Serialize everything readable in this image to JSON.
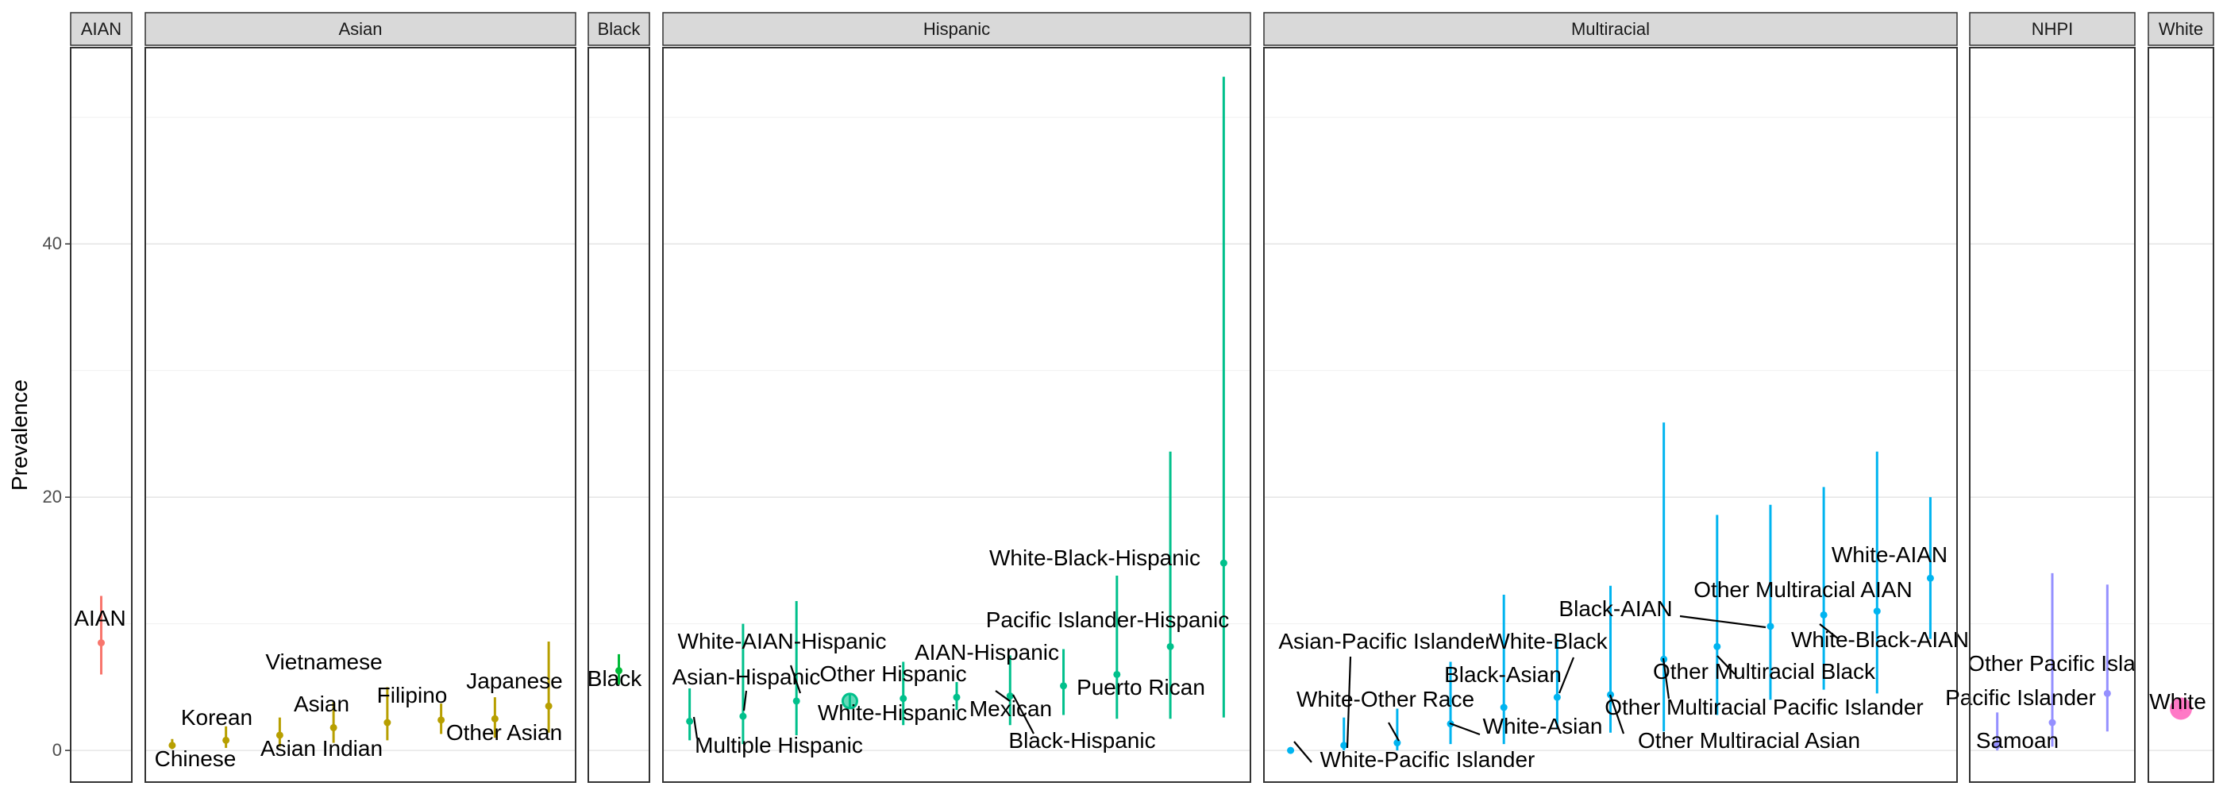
{
  "chart_data": {
    "type": "scatter",
    "subtype": "faceted point estimates with error bars",
    "ylabel": "Prevalence",
    "ylim": [
      -2.5,
      55.5
    ],
    "yticks": [
      0,
      20,
      40
    ],
    "grid": true,
    "legend": "none",
    "facets": [
      {
        "name": "AIAN",
        "color": "#F8766D",
        "points": [
          {
            "label": "AIAN",
            "value": 8.5,
            "lo": 6.0,
            "hi": 12.2
          }
        ]
      },
      {
        "name": "Asian",
        "color": "#B79F00",
        "points": [
          {
            "label": "Chinese",
            "value": 0.4,
            "lo": 0.1,
            "hi": 0.9
          },
          {
            "label": "Korean",
            "value": 0.8,
            "lo": 0.2,
            "hi": 1.9
          },
          {
            "label": "Asian Indian",
            "value": 1.2,
            "lo": 0.3,
            "hi": 2.6
          },
          {
            "label": "Asian",
            "value": 1.8,
            "lo": 0.6,
            "hi": 3.8
          },
          {
            "label": "Vietnamese",
            "value": 2.2,
            "lo": 0.8,
            "hi": 5.0
          },
          {
            "label": "Filipino",
            "value": 2.4,
            "lo": 1.3,
            "hi": 3.7
          },
          {
            "label": "Other Asian",
            "value": 2.5,
            "lo": 1.0,
            "hi": 4.2
          },
          {
            "label": "Japanese",
            "value": 3.5,
            "lo": 1.4,
            "hi": 8.6
          }
        ]
      },
      {
        "name": "Black",
        "color": "#00BA38",
        "points": [
          {
            "label": "Black",
            "value": 6.3,
            "lo": 5.2,
            "hi": 7.6
          }
        ]
      },
      {
        "name": "Hispanic",
        "color": "#00C08B",
        "points": [
          {
            "label": "Multiple Hispanic",
            "value": 2.3,
            "lo": 0.8,
            "hi": 4.9
          },
          {
            "label": "Asian-Hispanic",
            "value": 2.7,
            "lo": 0.5,
            "hi": 10.0
          },
          {
            "label": "White-AIAN-Hispanic",
            "value": 3.9,
            "lo": 1.2,
            "hi": 11.8
          },
          {
            "label": "White-Hispanic",
            "value": 3.9,
            "lo": 3.3,
            "hi": 4.5
          },
          {
            "label": "Other Hispanic",
            "value": 4.1,
            "lo": 2.0,
            "hi": 7.0
          },
          {
            "label": "AIAN-Hispanic",
            "value": 4.2,
            "lo": 3.2,
            "hi": 5.4
          },
          {
            "label": "Mexican",
            "value": 4.3,
            "lo": 2.0,
            "hi": 7.5
          },
          {
            "label": "Puerto Rican",
            "value": 5.1,
            "lo": 2.8,
            "hi": 8.0
          },
          {
            "label": "Pacific Islander-Hispanic",
            "value": 6.0,
            "lo": 2.5,
            "hi": 13.8
          },
          {
            "label": "Black-Hispanic",
            "value": 8.2,
            "lo": 2.5,
            "hi": 23.6
          },
          {
            "label": "White-Black-Hispanic",
            "value": 14.8,
            "lo": 2.6,
            "hi": 53.2
          }
        ]
      },
      {
        "name": "Multiracial",
        "color": "#00B4F0",
        "points": [
          {
            "label": "White-Pacific Islander",
            "value": 0.0,
            "lo": 0.0,
            "hi": 0.0
          },
          {
            "label": "Asian-Pacific Islander",
            "value": 0.4,
            "lo": 0.0,
            "hi": 2.6
          },
          {
            "label": "White-Other Race",
            "value": 0.6,
            "lo": 0.0,
            "hi": 3.3
          },
          {
            "label": "White-Asian",
            "value": 2.1,
            "lo": 0.5,
            "hi": 7.0
          },
          {
            "label": "Black-Asian",
            "value": 3.4,
            "lo": 0.5,
            "hi": 12.3
          },
          {
            "label": "White-Black",
            "value": 4.2,
            "lo": 1.8,
            "hi": 8.8
          },
          {
            "label": "Other Multiracial Asian",
            "value": 4.4,
            "lo": 1.4,
            "hi": 13.0
          },
          {
            "label": "Other Multiracial Pacific Islander",
            "value": 7.2,
            "lo": 1.5,
            "hi": 25.9
          },
          {
            "label": "Other Multiracial Black",
            "value": 8.2,
            "lo": 2.8,
            "hi": 18.6
          },
          {
            "label": "Black-AIAN",
            "value": 9.8,
            "lo": 4.0,
            "hi": 19.4
          },
          {
            "label": "White-Black-AIAN",
            "value": 10.7,
            "lo": 4.8,
            "hi": 20.8
          },
          {
            "label": "Other Multiracial AIAN",
            "value": 11.0,
            "lo": 4.5,
            "hi": 23.6
          },
          {
            "label": "White-AIAN",
            "value": 13.6,
            "lo": 8.8,
            "hi": 20.0
          }
        ]
      },
      {
        "name": "NHPI",
        "color": "#9590FF",
        "points": [
          {
            "label": "Samoan",
            "value": 0.4,
            "lo": 0.0,
            "hi": 3.0
          },
          {
            "label": "Pacific Islander",
            "value": 2.2,
            "lo": 0.3,
            "hi": 14.0
          },
          {
            "label": "Other Pacific Isla",
            "value": 4.5,
            "lo": 1.5,
            "hi": 13.1
          }
        ]
      },
      {
        "name": "White",
        "color": "#FF62BC",
        "points": [
          {
            "label": "White",
            "value": 3.3,
            "lo": 3.1,
            "hi": 3.5
          }
        ]
      }
    ]
  }
}
